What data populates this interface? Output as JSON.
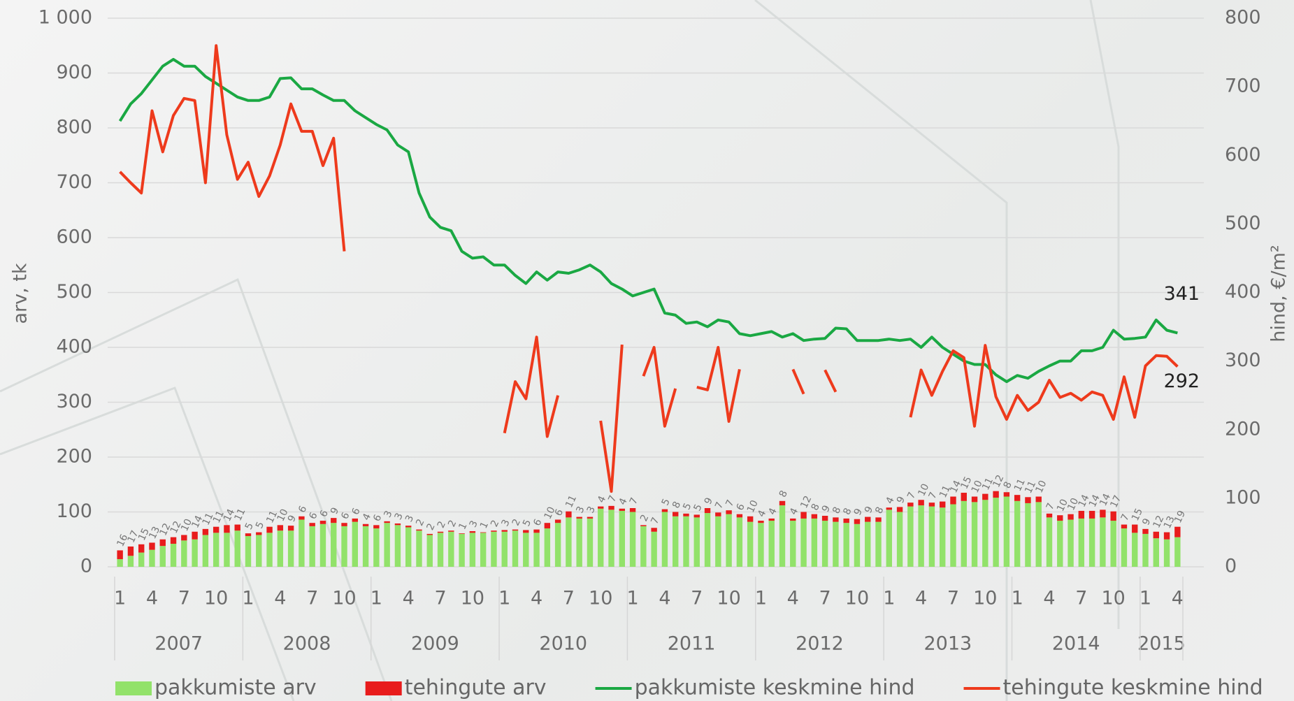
{
  "chart_data": {
    "type": "combo",
    "y_label": "arv, tk",
    "y2_label": "hind, €/m²",
    "ylim": [
      0,
      1000
    ],
    "yticks": [
      0,
      100,
      200,
      300,
      400,
      500,
      600,
      700,
      800,
      900,
      {
        "value": 1000,
        "label": "1 000"
      }
    ],
    "y2lim": [
      0,
      800
    ],
    "y2ticks": [
      0,
      100,
      200,
      300,
      400,
      500,
      600,
      700,
      800
    ],
    "grid": true,
    "legend": "bottom",
    "categories": [
      "1",
      null,
      null,
      "4",
      null,
      null,
      "7",
      null,
      null,
      "10",
      null,
      null,
      "1",
      null,
      null,
      "4",
      null,
      null,
      "7",
      null,
      null,
      "10",
      null,
      null,
      "1",
      null,
      null,
      "4",
      null,
      null,
      "7",
      null,
      null,
      "10",
      null,
      null,
      "1",
      null,
      null,
      "4",
      null,
      null,
      "7",
      null,
      null,
      "10",
      null,
      null,
      "1",
      null,
      null,
      "4",
      null,
      null,
      "7",
      null,
      null,
      "10",
      null,
      null,
      "1",
      null,
      null,
      "4",
      null,
      null,
      "7",
      null,
      null,
      "10",
      null,
      null,
      "1",
      null,
      null,
      "4",
      null,
      null,
      "7",
      null,
      null,
      "10",
      null,
      null,
      "1",
      null,
      null,
      "4",
      null,
      null,
      "7",
      null,
      null,
      "10",
      null,
      null,
      "1",
      null,
      null,
      "4"
    ],
    "year_labels": [
      "2007",
      "2008",
      "2009",
      "2010",
      "2011",
      "2012",
      "2013",
      "2014",
      "2015"
    ],
    "series": [
      {
        "name": "pakkumiste arv",
        "type": "bar",
        "color": "#92e26a",
        "values": [
          14,
          20,
          26,
          31,
          38,
          42,
          48,
          50,
          58,
          62,
          62,
          66,
          56,
          58,
          62,
          66,
          66,
          86,
          74,
          78,
          80,
          74,
          82,
          74,
          70,
          80,
          76,
          72,
          66,
          58,
          62,
          64,
          60,
          62,
          62,
          64,
          64,
          66,
          62,
          62,
          70,
          80,
          90,
          88,
          88,
          106,
          104,
          102,
          100,
          74,
          64,
          100,
          92,
          92,
          90,
          98,
          92,
          96,
          90,
          82,
          80,
          84,
          112,
          84,
          88,
          88,
          84,
          82,
          80,
          78,
          82,
          82,
          104,
          100,
          110,
          112,
          110,
          108,
          114,
          120,
          118,
          122,
          126,
          128,
          120,
          116,
          118,
          90,
          84,
          86,
          88,
          88,
          90,
          84,
          70,
          62,
          60,
          52,
          50,
          54
        ]
      },
      {
        "name": "tehingute arv",
        "type": "bar",
        "color": "#e81c1c",
        "show_values": true,
        "values": [
          16,
          17,
          15,
          13,
          12,
          12,
          10,
          14,
          11,
          11,
          14,
          11,
          5,
          5,
          11,
          10,
          9,
          6,
          6,
          6,
          9,
          6,
          6,
          4,
          6,
          3,
          3,
          3,
          2,
          2,
          2,
          2,
          1,
          3,
          1,
          2,
          3,
          2,
          5,
          6,
          10,
          6,
          11,
          3,
          3,
          4,
          7,
          4,
          7,
          2,
          7,
          5,
          8,
          5,
          5,
          9,
          7,
          7,
          6,
          10,
          4,
          4,
          8,
          4,
          12,
          8,
          9,
          8,
          8,
          9,
          9,
          8,
          4,
          9,
          7,
          10,
          7,
          11,
          14,
          15,
          10,
          11,
          12,
          8,
          11,
          11,
          10,
          7,
          10,
          10,
          14,
          14,
          14,
          17,
          7,
          15,
          9,
          12,
          13,
          19
        ]
      },
      {
        "name": "pakkumiste keskmine hind",
        "type": "line",
        "axis": "y2",
        "color": "#1aa843",
        "end_label": true,
        "values": [
          650,
          675,
          690,
          710,
          730,
          740,
          730,
          730,
          715,
          705,
          695,
          685,
          680,
          680,
          685,
          712,
          713,
          697,
          697,
          688,
          680,
          680,
          665,
          655,
          645,
          637,
          615,
          605,
          545,
          510,
          495,
          490,
          460,
          450,
          452,
          440,
          440,
          425,
          413,
          430,
          418,
          430,
          428,
          433,
          440,
          430,
          413,
          405,
          395,
          400,
          405,
          370,
          367,
          355,
          357,
          350,
          360,
          357,
          340,
          337,
          340,
          343,
          335,
          340,
          330,
          332,
          333,
          348,
          347,
          330,
          330,
          330,
          332,
          330,
          332,
          320,
          335,
          320,
          310,
          300,
          295,
          295,
          280,
          270,
          279,
          275,
          285,
          293,
          300,
          300,
          315,
          315,
          320,
          345,
          332,
          333,
          335,
          360,
          345,
          341
        ]
      },
      {
        "name": "tehingute keskmine hind",
        "type": "line",
        "axis": "y2",
        "color": "#ee3a1c",
        "end_label": true,
        "values": [
          576,
          560,
          545,
          665,
          605,
          658,
          683,
          680,
          560,
          760,
          630,
          565,
          590,
          540,
          570,
          615,
          675,
          635,
          635,
          585,
          625,
          460,
          null,
          null,
          null,
          null,
          null,
          null,
          null,
          null,
          null,
          null,
          null,
          null,
          null,
          null,
          195,
          270,
          245,
          335,
          190,
          250,
          null,
          null,
          null,
          213,
          110,
          324,
          null,
          278,
          320,
          205,
          260,
          null,
          262,
          258,
          320,
          212,
          288,
          null,
          null,
          null,
          null,
          288,
          252,
          null,
          287,
          255,
          null,
          null,
          null,
          null,
          null,
          null,
          218,
          287,
          250,
          285,
          315,
          305,
          205,
          323,
          248,
          215,
          250,
          228,
          240,
          272,
          247,
          253,
          243,
          255,
          250,
          215,
          277,
          218,
          293,
          308,
          307,
          292
        ]
      }
    ]
  }
}
